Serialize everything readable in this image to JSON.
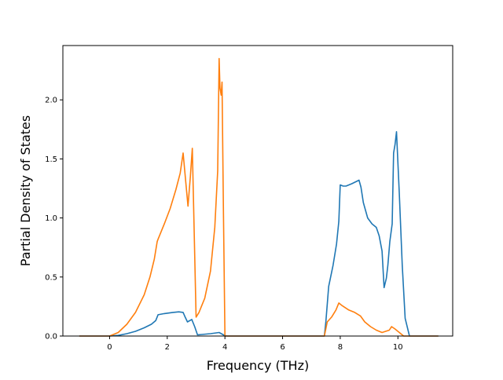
{
  "chart_data": {
    "type": "line",
    "title": "",
    "xlabel": "Frequency (THz)",
    "ylabel": "Partial Density of States",
    "xlim": [
      -1.62,
      11.9
    ],
    "ylim": [
      0.0,
      2.46
    ],
    "xticks": [
      0,
      2,
      4,
      6,
      8,
      10
    ],
    "yticks": [
      0.0,
      0.5,
      1.0,
      1.5,
      2.0
    ],
    "xtick_labels": [
      "0",
      "2",
      "4",
      "6",
      "8",
      "10"
    ],
    "ytick_labels": [
      "0.0",
      "0.5",
      "1.0",
      "1.5",
      "2.0"
    ],
    "grid": false,
    "legend": "none",
    "series": [
      {
        "color": "#1f77b4",
        "x": [
          -1.05,
          0.0,
          0.3,
          0.6,
          0.9,
          1.2,
          1.45,
          1.6,
          1.68,
          1.9,
          2.2,
          2.4,
          2.55,
          2.62,
          2.7,
          2.85,
          2.95,
          3.05,
          3.5,
          3.8,
          3.95,
          4.05,
          7.45,
          7.5,
          7.6,
          7.75,
          7.87,
          7.95,
          8.0,
          8.1,
          8.2,
          8.4,
          8.65,
          8.72,
          8.8,
          8.95,
          9.1,
          9.25,
          9.35,
          9.45,
          9.52,
          9.6,
          9.65,
          9.72,
          9.8,
          9.85,
          9.9,
          9.95,
          10.05,
          10.15,
          10.25,
          10.4,
          11.4
        ],
        "y": [
          0.0,
          0.0,
          0.005,
          0.02,
          0.04,
          0.07,
          0.1,
          0.13,
          0.18,
          0.19,
          0.2,
          0.205,
          0.2,
          0.16,
          0.12,
          0.14,
          0.08,
          0.01,
          0.02,
          0.03,
          0.01,
          0.0,
          0.0,
          0.12,
          0.42,
          0.6,
          0.78,
          0.97,
          1.28,
          1.27,
          1.27,
          1.29,
          1.32,
          1.26,
          1.13,
          1.0,
          0.95,
          0.92,
          0.85,
          0.72,
          0.41,
          0.49,
          0.6,
          0.8,
          0.95,
          1.55,
          1.62,
          1.73,
          1.2,
          0.6,
          0.15,
          0.0,
          0.0
        ]
      },
      {
        "color": "#ff7f0e",
        "x": [
          -1.05,
          0.0,
          0.3,
          0.6,
          0.9,
          1.2,
          1.4,
          1.55,
          1.65,
          1.68,
          1.9,
          2.1,
          2.3,
          2.45,
          2.55,
          2.65,
          2.72,
          2.8,
          2.87,
          3.0,
          3.1,
          3.3,
          3.5,
          3.65,
          3.75,
          3.8,
          3.83,
          3.87,
          3.9,
          3.95,
          4.0,
          7.45,
          7.55,
          7.7,
          7.85,
          7.95,
          8.05,
          8.3,
          8.5,
          8.7,
          8.85,
          9.05,
          9.25,
          9.45,
          9.7,
          9.78,
          9.9,
          10.2,
          11.4
        ],
        "y": [
          0.0,
          0.0,
          0.03,
          0.1,
          0.2,
          0.35,
          0.5,
          0.65,
          0.8,
          0.82,
          0.95,
          1.08,
          1.24,
          1.38,
          1.55,
          1.28,
          1.1,
          1.35,
          1.59,
          0.16,
          0.2,
          0.32,
          0.55,
          0.92,
          1.4,
          2.35,
          2.1,
          2.04,
          2.15,
          1.05,
          0.0,
          0.0,
          0.12,
          0.16,
          0.22,
          0.28,
          0.26,
          0.22,
          0.2,
          0.17,
          0.12,
          0.08,
          0.05,
          0.03,
          0.05,
          0.08,
          0.06,
          0.0,
          0.0
        ]
      }
    ]
  }
}
